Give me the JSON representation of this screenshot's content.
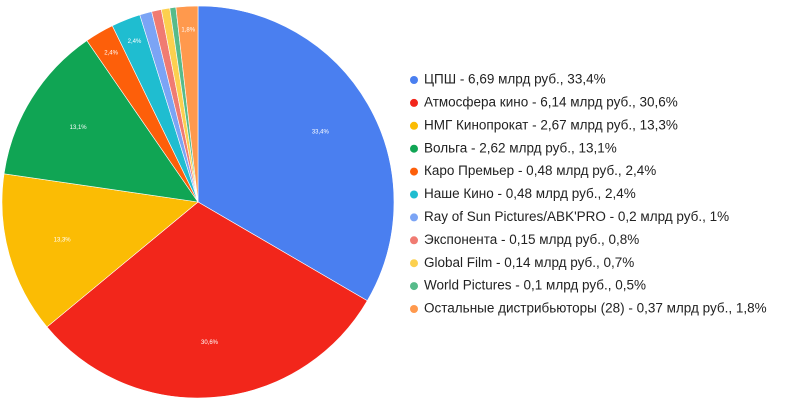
{
  "chart_data": {
    "type": "pie",
    "categories": [
      "ЦПШ - 6,69 млрд руб., 33,4%",
      "Атмосфера кино - 6,14 млрд руб., 30,6%",
      "НМГ Кинопрокат - 2,67 млрд руб., 13,3%",
      "Вольга - 2,62 млрд руб., 13,1%",
      "Каро Премьер - 0,48 млрд руб., 2,4%",
      "Наше Кино - 0,48 млрд руб., 2,4%",
      "Ray of Sun Pictures/ABK'PRO - 0,2 млрд руб., 1%",
      "Экспонента - 0,15 млрд руб., 0,8%",
      "Global Film - 0,14 млрд руб., 0,7%",
      "World Pictures - 0,1 млрд руб., 0,5%",
      "Остальные дистрибьюторы (28) - 0,37 млрд руб., 1,8%"
    ],
    "values": [
      33.4,
      30.6,
      13.3,
      13.1,
      2.4,
      2.4,
      1,
      0.8,
      0.7,
      0.5,
      1.8
    ],
    "value_labels": [
      "33,4%",
      "30,6%",
      "13,3%",
      "13,1%",
      "2,4%",
      "2,4%",
      null,
      null,
      null,
      null,
      "1,8%"
    ],
    "colors": [
      "#4a7ff0",
      "#f2261b",
      "#fbbc04",
      "#10a554",
      "#fd5f0a",
      "#1fbdd0",
      "#7ba4f5",
      "#f07b72",
      "#fcd04f",
      "#57bb8a",
      "#ff994d"
    ],
    "legend": "right"
  }
}
